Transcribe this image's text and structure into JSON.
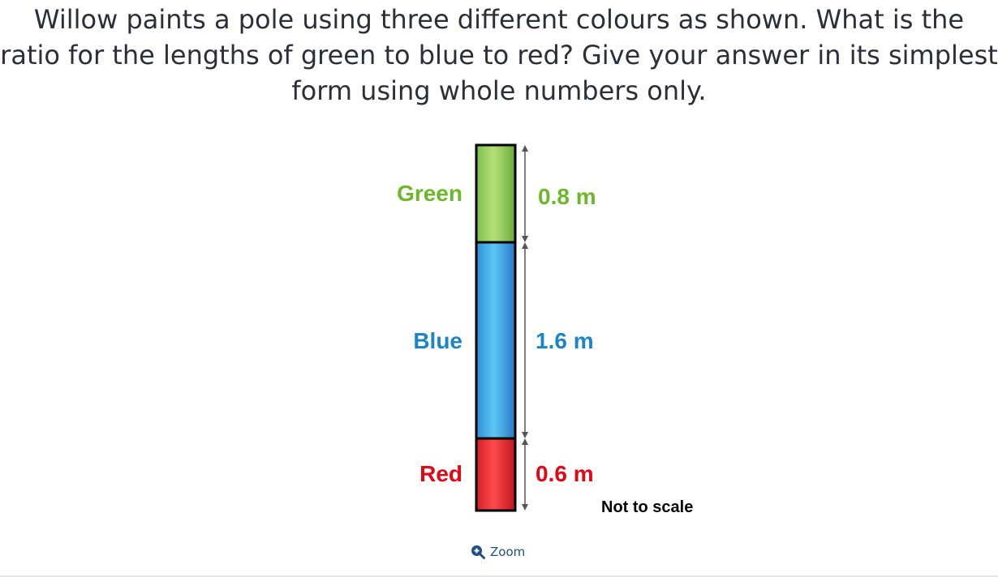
{
  "question": {
    "text": "Willow paints a pole using three different colours as shown. What is the ratio for the lengths of green to blue to red? Give your answer in its simplest form using whole numbers only."
  },
  "diagram": {
    "segments": [
      {
        "label": "Green",
        "length_label": "0.8 m",
        "length": 0.8,
        "color": "#5cb82a"
      },
      {
        "label": "Blue",
        "length_label": "1.6 m",
        "length": 1.6,
        "color": "#1a86c8"
      },
      {
        "label": "Red",
        "length_label": "0.6 m",
        "length": 0.6,
        "color": "#e30613"
      }
    ],
    "note": "Not to scale"
  },
  "zoom": {
    "label": "Zoom",
    "icon": "zoom-in-icon"
  }
}
